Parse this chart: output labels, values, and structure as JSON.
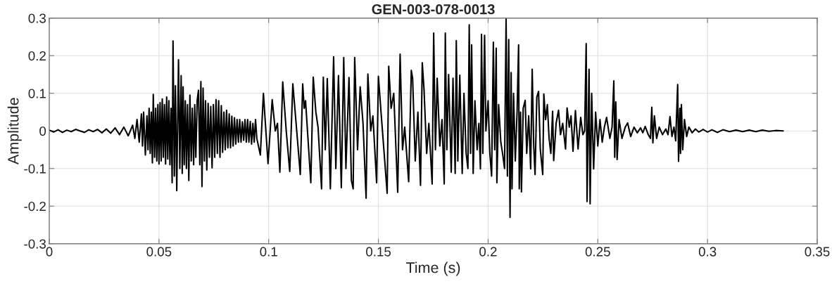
{
  "chart_data": {
    "type": "line",
    "title": "GEN-003-078-0013",
    "xlabel": "Time (s)",
    "ylabel": "Amplitude",
    "xlim": [
      0,
      0.35
    ],
    "ylim": [
      -0.3,
      0.3
    ],
    "xticks": [
      0,
      0.05,
      0.1,
      0.15,
      0.2,
      0.25,
      0.3,
      0.35
    ],
    "yticks": [
      -0.3,
      -0.2,
      -0.1,
      0,
      0.1,
      0.2,
      0.3
    ],
    "grid": true,
    "x": [
      0,
      0.002,
      0.004,
      0.006,
      0.008,
      0.01,
      0.012,
      0.014,
      0.016,
      0.018,
      0.02,
      0.022,
      0.024,
      0.026,
      0.028,
      0.03,
      0.032,
      0.034,
      0.036,
      0.038,
      0.039,
      0.04,
      0.041,
      0.042,
      0.0425,
      0.043,
      0.0438,
      0.0445,
      0.045,
      0.0455,
      0.046,
      0.0465,
      0.047,
      0.0474,
      0.048,
      0.0485,
      0.049,
      0.0495,
      0.05,
      0.0505,
      0.051,
      0.0515,
      0.052,
      0.0525,
      0.053,
      0.0535,
      0.054,
      0.0545,
      0.055,
      0.0555,
      0.056,
      0.0564,
      0.057,
      0.0575,
      0.0581,
      0.0589,
      0.0595,
      0.0601,
      0.0606,
      0.061,
      0.0615,
      0.062,
      0.0625,
      0.063,
      0.0636,
      0.0641,
      0.0647,
      0.0652,
      0.0658,
      0.0663,
      0.0668,
      0.0674,
      0.068,
      0.0686,
      0.0691,
      0.0696,
      0.0701,
      0.0707,
      0.0712,
      0.0718,
      0.0724,
      0.073,
      0.0736,
      0.0742,
      0.0748,
      0.0754,
      0.076,
      0.0766,
      0.0772,
      0.0778,
      0.0784,
      0.079,
      0.0796,
      0.0802,
      0.0808,
      0.0814,
      0.082,
      0.0826,
      0.0832,
      0.0838,
      0.0844,
      0.085,
      0.0856,
      0.0862,
      0.0868,
      0.0874,
      0.088,
      0.0886,
      0.0892,
      0.0898,
      0.0904,
      0.091,
      0.0916,
      0.0922,
      0.0928,
      0.0934,
      0.094,
      0.0946,
      0.0962,
      0.0976,
      0.0997,
      0.1016,
      0.103,
      0.104,
      0.1051,
      0.1064,
      0.108,
      0.1096,
      0.111,
      0.1125,
      0.1144,
      0.1155,
      0.1162,
      0.1168,
      0.1192,
      0.1203,
      0.1215,
      0.1225,
      0.1241,
      0.1249,
      0.1258,
      0.1267,
      0.1281,
      0.1296,
      0.1306,
      0.1318,
      0.1331,
      0.1342,
      0.1352,
      0.1366,
      0.1377,
      0.1385,
      0.1392,
      0.1405,
      0.1417,
      0.143,
      0.1444,
      0.1452,
      0.1465,
      0.1475,
      0.1492,
      0.15,
      0.1512,
      0.1525,
      0.154,
      0.1547,
      0.1558,
      0.157,
      0.1588,
      0.1599,
      0.161,
      0.162,
      0.1638,
      0.165,
      0.1656,
      0.1668,
      0.168,
      0.1692,
      0.17,
      0.1708,
      0.172,
      0.173,
      0.1745,
      0.1752,
      0.176,
      0.1768,
      0.178,
      0.179,
      0.18,
      0.1805,
      0.1812,
      0.182,
      0.1832,
      0.184,
      0.185,
      0.1855,
      0.1862,
      0.1871,
      0.1882,
      0.189,
      0.19,
      0.1908,
      0.1914,
      0.192,
      0.1925,
      0.1932,
      0.194,
      0.195,
      0.1958,
      0.1965,
      0.197,
      0.1976,
      0.1984,
      0.199,
      0.2,
      0.2008,
      0.2016,
      0.2024,
      0.203,
      0.2037,
      0.204,
      0.2048,
      0.2058,
      0.2066,
      0.2075,
      0.2082,
      0.2088,
      0.2094,
      0.21,
      0.2105,
      0.2109,
      0.2116,
      0.2124,
      0.2132,
      0.2139,
      0.2142,
      0.2148,
      0.2152,
      0.216,
      0.2169,
      0.2176,
      0.2185,
      0.2194,
      0.2201,
      0.2208,
      0.2214,
      0.2222,
      0.223,
      0.2238,
      0.2249,
      0.2254,
      0.2262,
      0.227,
      0.2278,
      0.2286,
      0.2294,
      0.2299,
      0.231,
      0.2321,
      0.233,
      0.234,
      0.2353,
      0.236,
      0.237,
      0.2378,
      0.2387,
      0.2398,
      0.241,
      0.2422,
      0.2432,
      0.244,
      0.2447,
      0.2451,
      0.246,
      0.2465,
      0.2472,
      0.2481,
      0.249,
      0.25,
      0.251,
      0.252,
      0.253,
      0.254,
      0.2555,
      0.2565,
      0.2573,
      0.2577,
      0.2582,
      0.2588,
      0.2597,
      0.261,
      0.2625,
      0.2636,
      0.265,
      0.2665,
      0.268,
      0.2695,
      0.2705,
      0.2716,
      0.273,
      0.274,
      0.2746,
      0.2751,
      0.2758,
      0.2768,
      0.278,
      0.2795,
      0.281,
      0.282,
      0.2829,
      0.2838,
      0.2847,
      0.2855,
      0.2864,
      0.2868,
      0.2874,
      0.2877,
      0.2881,
      0.2887,
      0.2895,
      0.2905,
      0.2915,
      0.293,
      0.2945,
      0.296,
      0.298,
      0.3,
      0.302,
      0.3045,
      0.307,
      0.31,
      0.313,
      0.316,
      0.319,
      0.322,
      0.325,
      0.328,
      0.331,
      0.3345
    ],
    "series": [
      {
        "color": "#000000",
        "values": [
          0.002,
          -0.003,
          0.003,
          -0.004,
          0.002,
          -0.002,
          0.004,
          0.0,
          -0.004,
          0.003,
          -0.002,
          0.004,
          -0.005,
          0.005,
          -0.006,
          0.008,
          -0.01,
          0.01,
          -0.013,
          0.015,
          -0.02,
          0.03,
          -0.03,
          0.045,
          -0.04,
          0.05,
          -0.064,
          0.04,
          -0.05,
          0.06,
          -0.06,
          0.05,
          -0.085,
          0.097,
          -0.07,
          0.06,
          -0.08,
          0.07,
          -0.088,
          0.075,
          -0.08,
          0.085,
          -0.07,
          0.07,
          -0.088,
          0.09,
          -0.075,
          0.08,
          -0.09,
          0.06,
          -0.138,
          0.239,
          -0.12,
          0.12,
          -0.159,
          0.189,
          -0.1,
          0.147,
          -0.113,
          0.117,
          -0.09,
          0.08,
          -0.1,
          0.07,
          -0.132,
          0.095,
          -0.08,
          0.06,
          -0.09,
          0.07,
          -0.07,
          0.08,
          0.108,
          -0.09,
          0.131,
          -0.148,
          0.114,
          -0.08,
          0.08,
          -0.104,
          0.073,
          -0.07,
          0.065,
          -0.098,
          0.07,
          -0.07,
          0.083,
          -0.06,
          0.08,
          -0.07,
          0.067,
          -0.057,
          0.05,
          -0.05,
          0.055,
          -0.045,
          0.045,
          -0.045,
          0.039,
          -0.04,
          0.035,
          -0.035,
          0.03,
          -0.03,
          0.03,
          -0.03,
          0.024,
          -0.025,
          0.03,
          -0.03,
          0.03,
          -0.03,
          0.025,
          -0.035,
          0.02,
          -0.03,
          0.03,
          -0.02,
          -0.064,
          0.1,
          -0.087,
          0.083,
          0.0,
          0.02,
          -0.11,
          0.13,
          0.0,
          -0.108,
          0.125,
          0.02,
          -0.116,
          0.125,
          0.06,
          0.08,
          -0.138,
          0.143,
          0.05,
          0.01,
          -0.154,
          0.143,
          -0.05,
          0.139,
          -0.154,
          0.197,
          -0.1,
          0.147,
          -0.151,
          0.195,
          -0.1,
          0.142,
          -0.132,
          -0.154,
          0.195,
          -0.05,
          0.117,
          0.02,
          -0.179,
          0.151,
          0.0,
          0.04,
          -0.138,
          0.145,
          0.05,
          -0.05,
          -0.166,
          0.172,
          0.06,
          0.1,
          -0.163,
          0.204,
          -0.05,
          0.01,
          -0.135,
          0.161,
          0.14,
          -0.08,
          0.05,
          -0.145,
          0.181,
          0.11,
          -0.06,
          0.02,
          -0.141,
          0.26,
          -0.05,
          0.14,
          -0.04,
          0.03,
          -0.141,
          0.26,
          -0.05,
          0.15,
          -0.11,
          0.14,
          -0.113,
          0.24,
          -0.08,
          0.148,
          -0.113,
          0.1,
          -0.06,
          -0.1,
          0.282,
          -0.06,
          0.229,
          -0.113,
          0.08,
          -0.05,
          0.02,
          -0.101,
          0.257,
          -0.06,
          0.254,
          0.0,
          0.08,
          -0.06,
          -0.12,
          0.236,
          -0.05,
          0.22,
          -0.138,
          0.07,
          -0.03,
          -0.06,
          -0.1,
          0.298,
          -0.12,
          0.243,
          -0.23,
          0.155,
          -0.154,
          0.1,
          -0.08,
          0.05,
          0.229,
          -0.154,
          0.05,
          -0.162,
          0.06,
          0.081,
          -0.06,
          0.04,
          -0.101,
          0.164,
          -0.04,
          -0.116,
          0.09,
          0.105,
          -0.05,
          -0.116,
          0.098,
          0.03,
          0.07,
          -0.02,
          -0.06,
          0.052,
          -0.079,
          0.02,
          0.055,
          -0.01,
          0.02,
          -0.048,
          0.061,
          0.01,
          0.04,
          -0.054,
          0.054,
          -0.048,
          0.036,
          -0.01,
          0.0,
          0.232,
          -0.188,
          0.164,
          -0.194,
          0.1,
          -0.101,
          0.05,
          -0.04,
          0.03,
          -0.03,
          0.01,
          0.036,
          -0.02,
          0.01,
          0.133,
          -0.07,
          0.077,
          -0.076,
          0.03,
          -0.02,
          0.01,
          0.021,
          -0.015,
          0.01,
          -0.005,
          0.008,
          -0.005,
          0.012,
          -0.01,
          -0.02,
          0.063,
          -0.032,
          0.04,
          -0.02,
          0.01,
          -0.01,
          0.005,
          -0.01,
          0.038,
          -0.015,
          0.01,
          -0.026,
          0.123,
          -0.081,
          0.06,
          -0.06,
          0.07,
          -0.05,
          0.03,
          -0.015,
          0.01,
          -0.005,
          0.005,
          -0.003,
          0.004,
          -0.003,
          0.003,
          -0.004,
          0.003,
          -0.002,
          0.002,
          -0.002,
          0.002,
          -0.002,
          0.002,
          -0.001,
          0.001,
          0.0
        ]
      }
    ]
  }
}
